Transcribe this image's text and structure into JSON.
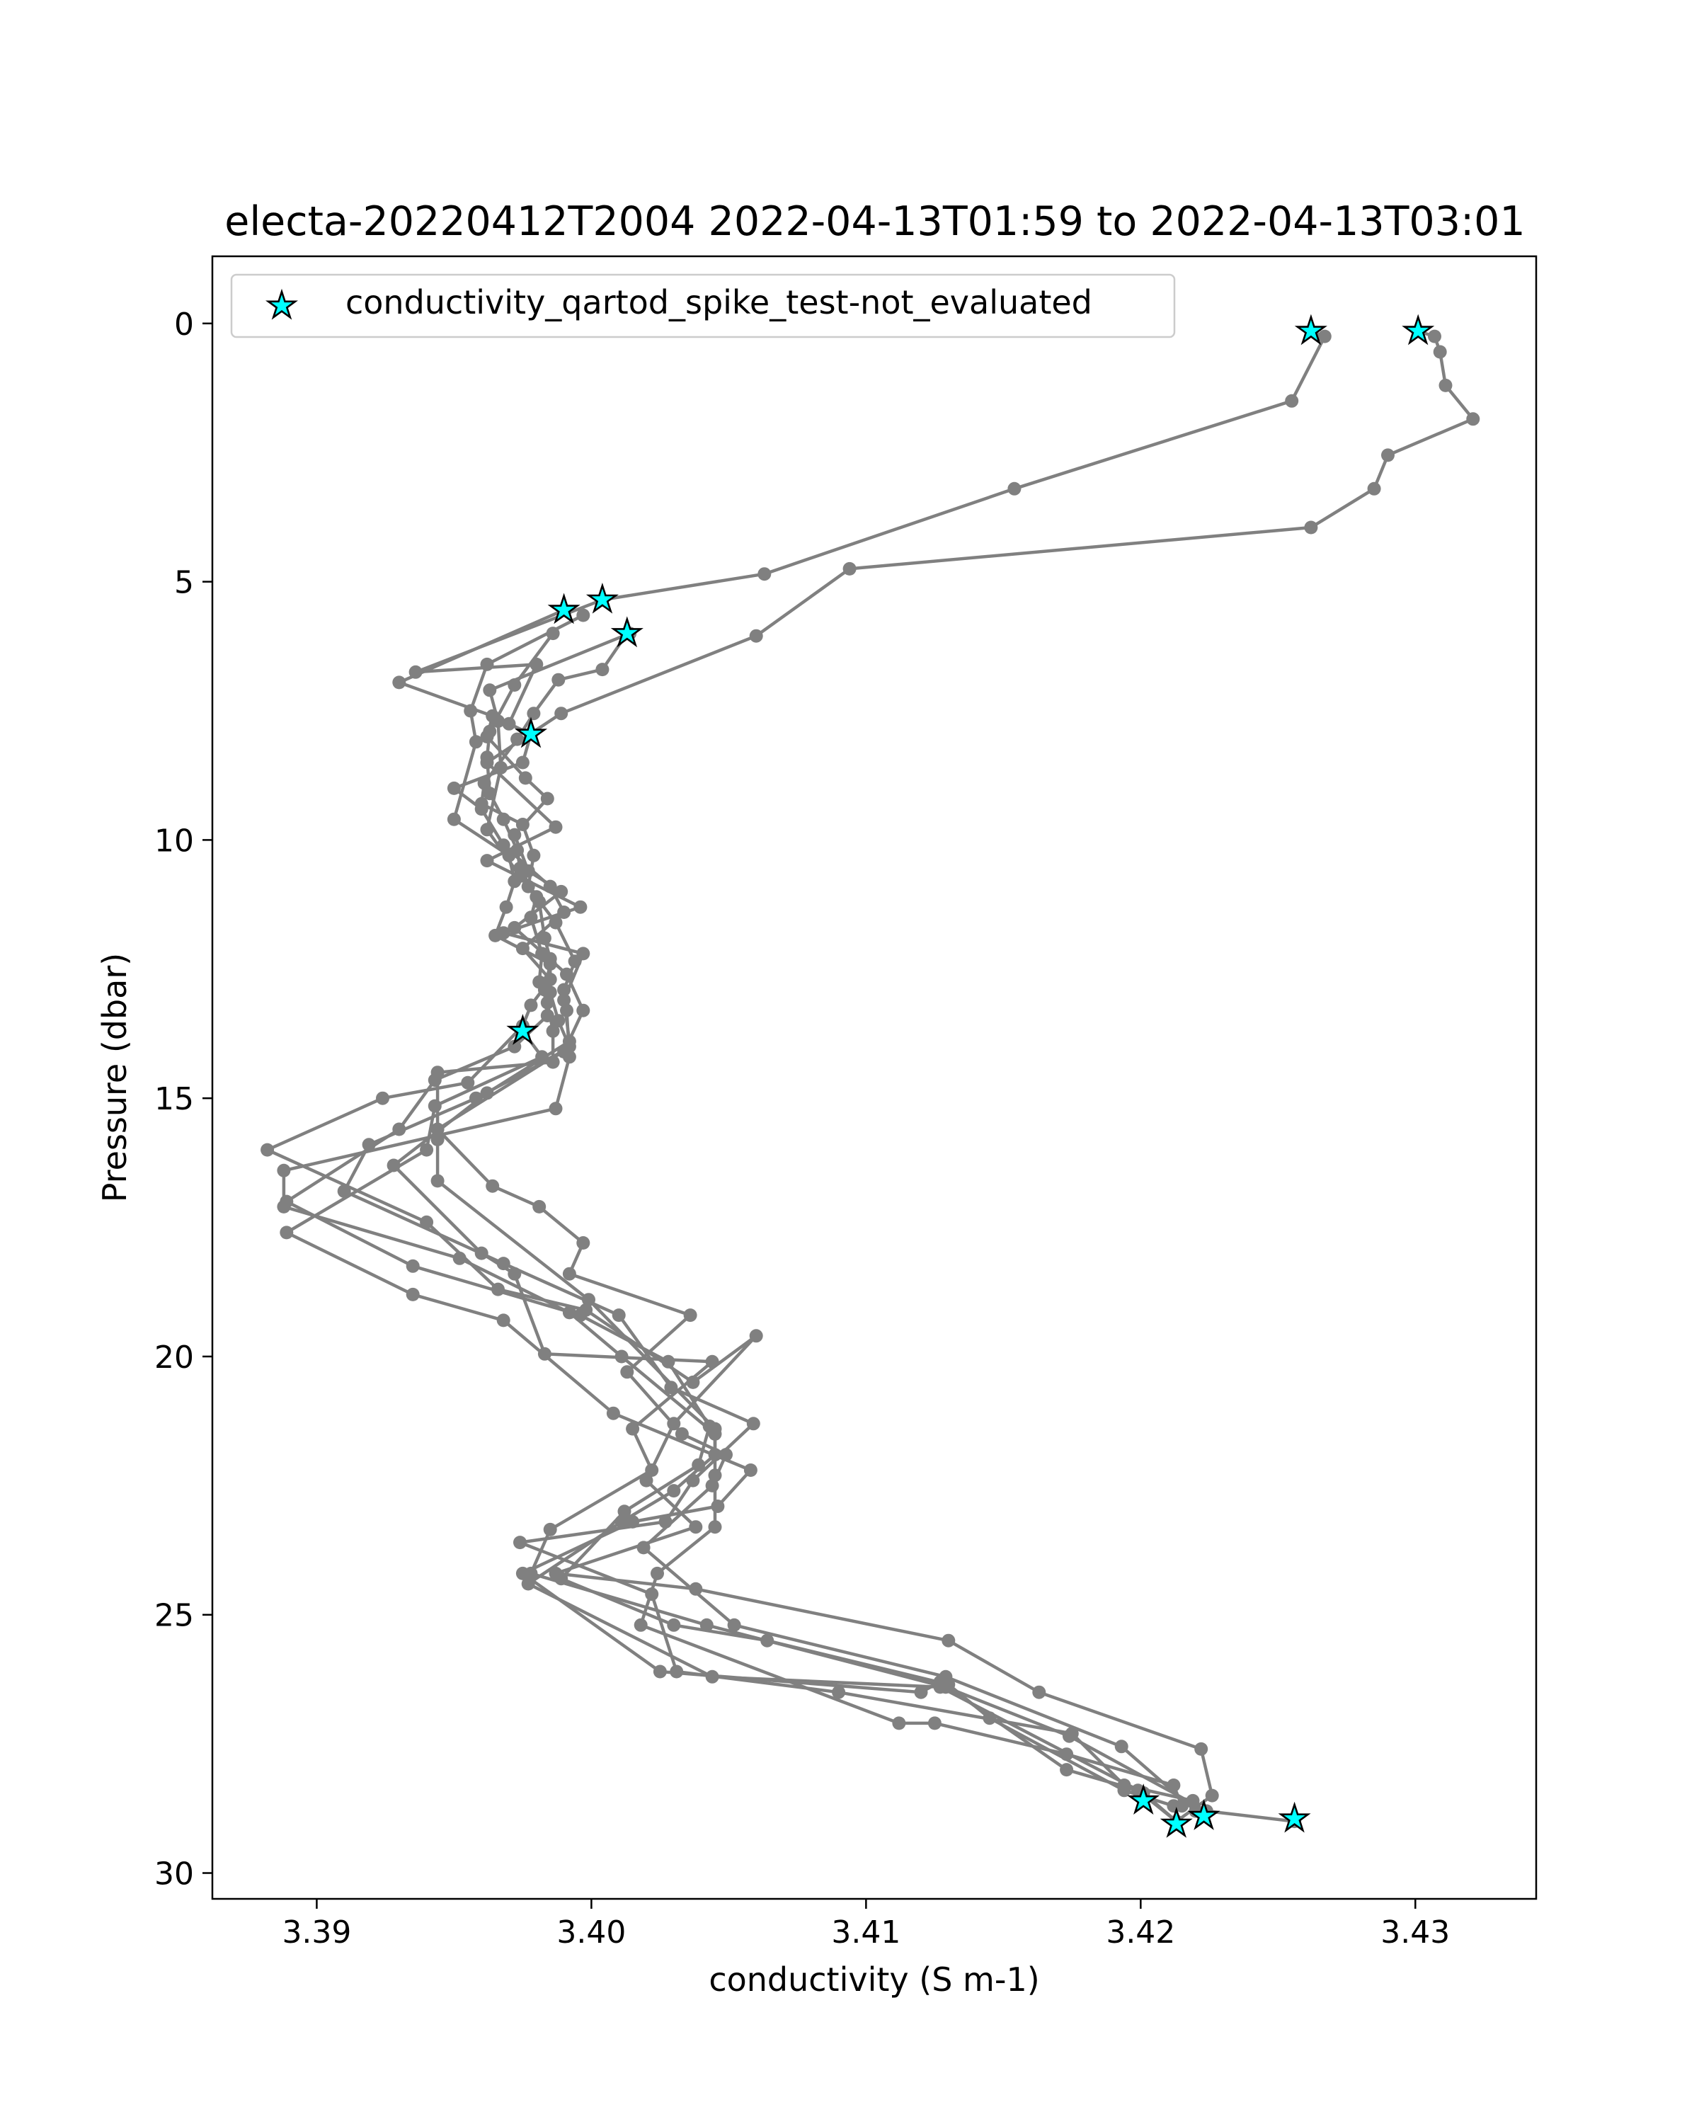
{
  "chart_data": {
    "type": "line",
    "title": "electa-20220412T2004 2022-04-13T01:59 to 2022-04-13T03:01",
    "xlabel": "conductivity (S m-1)",
    "ylabel": "Pressure (dbar)",
    "xlim": [
      3.3862,
      3.4344
    ],
    "ylim": [
      30.5,
      -1.3
    ],
    "y_inverted": true,
    "xticks": [
      "3.39",
      "3.40",
      "3.41",
      "3.42",
      "3.43"
    ],
    "xtick_values": [
      3.39,
      3.4,
      3.41,
      3.42,
      3.43
    ],
    "yticks": [
      "0",
      "5",
      "10",
      "15",
      "20",
      "25",
      "30"
    ],
    "ytick_values": [
      0,
      5,
      10,
      15,
      20,
      25,
      30
    ],
    "grid": false,
    "legend_position": "upper-left",
    "colors": {
      "line": "#808080",
      "marker": "#00ffff",
      "marker_edge": "#000000"
    },
    "series": [
      {
        "kind": "profile",
        "values": [
          [
            3.4262,
            0.15
          ],
          [
            3.4267,
            0.25
          ],
          [
            3.4255,
            1.5
          ],
          [
            3.4154,
            3.2
          ],
          [
            3.4063,
            4.85
          ],
          [
            3.4004,
            5.35
          ],
          [
            3.3936,
            6.75
          ],
          [
            3.398,
            6.6
          ],
          [
            3.397,
            7.75
          ],
          [
            3.3978,
            7.95
          ],
          [
            3.3975,
            8.5
          ],
          [
            3.395,
            9.0
          ],
          [
            3.396,
            9.4
          ],
          [
            3.3968,
            10.1
          ],
          [
            3.3985,
            10.9
          ],
          [
            3.399,
            11.4
          ],
          [
            3.3975,
            12.1
          ],
          [
            3.3985,
            12.7
          ],
          [
            3.3978,
            13.2
          ],
          [
            3.3975,
            13.6
          ],
          [
            3.3955,
            14.7
          ],
          [
            3.3924,
            15.0
          ],
          [
            3.3882,
            16.0
          ],
          [
            3.394,
            17.4
          ],
          [
            3.3966,
            18.7
          ],
          [
            3.3998,
            19.1
          ],
          [
            3.4037,
            20.5
          ],
          [
            3.406,
            19.6
          ],
          [
            3.403,
            21.3
          ],
          [
            3.402,
            22.4
          ],
          [
            3.4038,
            23.3
          ],
          [
            3.3987,
            24.2
          ],
          [
            3.4038,
            24.5
          ],
          [
            3.413,
            25.5
          ],
          [
            3.4163,
            26.5
          ],
          [
            3.4222,
            27.6
          ],
          [
            3.4226,
            28.5
          ],
          [
            3.4213,
            29.0
          ]
        ]
      },
      {
        "kind": "profile",
        "values": [
          [
            3.4301,
            0.15
          ],
          [
            3.4307,
            0.25
          ],
          [
            3.4309,
            0.55
          ],
          [
            3.4311,
            1.2
          ],
          [
            3.4321,
            1.85
          ],
          [
            3.429,
            2.55
          ],
          [
            3.4285,
            3.2
          ],
          [
            3.4262,
            3.95
          ],
          [
            3.4094,
            4.75
          ],
          [
            3.406,
            6.05
          ],
          [
            3.3989,
            7.55
          ],
          [
            3.3962,
            8.5
          ],
          [
            3.3987,
            9.75
          ],
          [
            3.3962,
            10.4
          ],
          [
            3.3996,
            11.3
          ],
          [
            3.3968,
            11.8
          ],
          [
            3.3997,
            12.2
          ],
          [
            3.399,
            13.1
          ],
          [
            3.3992,
            13.9
          ],
          [
            3.3962,
            14.9
          ],
          [
            3.3928,
            16.3
          ],
          [
            3.396,
            18.0
          ],
          [
            3.3972,
            18.4
          ],
          [
            3.3983,
            19.95
          ],
          [
            3.4044,
            20.1
          ],
          [
            3.4015,
            21.4
          ],
          [
            3.4022,
            22.2
          ],
          [
            3.3985,
            23.35
          ],
          [
            3.3978,
            24.2
          ],
          [
            3.4042,
            25.2
          ],
          [
            3.4129,
            26.4
          ],
          [
            3.4174,
            27.35
          ],
          [
            3.4224,
            28.8
          ],
          [
            3.4256,
            29.0
          ]
        ]
      },
      {
        "kind": "profile",
        "values": [
          [
            3.399,
            5.55
          ],
          [
            3.393,
            6.95
          ],
          [
            3.3964,
            7.6
          ],
          [
            3.3962,
            8.0
          ],
          [
            3.3976,
            8.8
          ],
          [
            3.3984,
            9.2
          ],
          [
            3.3972,
            9.9
          ],
          [
            3.3977,
            10.6
          ],
          [
            3.3989,
            11.0
          ],
          [
            3.3972,
            11.7
          ],
          [
            3.3991,
            12.6
          ],
          [
            3.3997,
            13.3
          ],
          [
            3.399,
            14.1
          ],
          [
            3.3958,
            15.0
          ],
          [
            3.3919,
            15.9
          ],
          [
            3.391,
            16.8
          ],
          [
            3.3968,
            18.2
          ],
          [
            3.401,
            19.2
          ],
          [
            3.4029,
            20.6
          ],
          [
            3.4059,
            21.3
          ],
          [
            3.4037,
            22.4
          ],
          [
            3.4027,
            23.2
          ],
          [
            3.3974,
            23.6
          ],
          [
            3.4022,
            24.6
          ],
          [
            3.4031,
            26.1
          ],
          [
            3.409,
            26.5
          ],
          [
            3.4175,
            27.3
          ],
          [
            3.4194,
            28.3
          ],
          [
            3.4219,
            28.6
          ]
        ]
      },
      {
        "kind": "profile",
        "values": [
          [
            3.4013,
            6.0
          ],
          [
            3.4004,
            6.7
          ],
          [
            3.3988,
            6.9
          ],
          [
            3.3979,
            7.55
          ],
          [
            3.3973,
            8.05
          ],
          [
            3.3961,
            8.9
          ],
          [
            3.396,
            9.3
          ],
          [
            3.3975,
            9.7
          ],
          [
            3.3979,
            10.3
          ],
          [
            3.3977,
            10.9
          ],
          [
            3.3987,
            11.6
          ],
          [
            3.3994,
            12.35
          ],
          [
            3.399,
            12.9
          ],
          [
            3.3991,
            13.3
          ],
          [
            3.3992,
            14.2
          ],
          [
            3.3987,
            15.2
          ],
          [
            3.3888,
            16.4
          ],
          [
            3.3888,
            17.1
          ],
          [
            3.3952,
            18.1
          ],
          [
            3.3992,
            19.15
          ],
          [
            3.4011,
            20.0
          ],
          [
            3.4045,
            21.5
          ],
          [
            3.4045,
            22.3
          ],
          [
            3.4045,
            23.3
          ],
          [
            3.4024,
            24.2
          ],
          [
            3.4018,
            25.2
          ],
          [
            3.4112,
            27.1
          ],
          [
            3.4125,
            27.1
          ],
          [
            3.4173,
            27.7
          ],
          [
            3.4212,
            28.3
          ],
          [
            3.4215,
            28.7
          ]
        ]
      },
      {
        "kind": "profile",
        "values": [
          [
            3.3997,
            5.65
          ],
          [
            3.3962,
            6.6
          ],
          [
            3.3956,
            7.5
          ],
          [
            3.3958,
            8.1
          ],
          [
            3.395,
            9.6
          ],
          [
            3.397,
            10.3
          ],
          [
            3.3972,
            10.8
          ],
          [
            3.3969,
            11.3
          ],
          [
            3.3965,
            11.85
          ],
          [
            3.3985,
            12.4
          ],
          [
            3.3983,
            12.9
          ],
          [
            3.3984,
            13.4
          ],
          [
            3.3972,
            14.0
          ],
          [
            3.3943,
            14.65
          ],
          [
            3.393,
            15.6
          ],
          [
            3.3889,
            17.0
          ],
          [
            3.3935,
            18.25
          ],
          [
            3.3996,
            19.2
          ],
          [
            3.4028,
            20.1
          ],
          [
            3.4043,
            21.35
          ],
          [
            3.4039,
            22.1
          ],
          [
            3.4012,
            23.0
          ],
          [
            3.3989,
            24.3
          ],
          [
            3.403,
            25.2
          ],
          [
            3.4064,
            25.5
          ],
          [
            3.413,
            26.35
          ],
          [
            3.4145,
            27.0
          ],
          [
            3.4194,
            28.4
          ],
          [
            3.4212,
            28.7
          ]
        ]
      },
      {
        "kind": "profile",
        "values": [
          [
            3.3975,
            13.7
          ],
          [
            3.3982,
            14.2
          ],
          [
            3.3943,
            15.15
          ],
          [
            3.394,
            16.0
          ],
          [
            3.3889,
            17.6
          ],
          [
            3.3935,
            18.8
          ],
          [
            3.3968,
            19.3
          ],
          [
            3.4008,
            21.1
          ],
          [
            3.4058,
            22.2
          ],
          [
            3.4046,
            22.9
          ],
          [
            3.4015,
            23.2
          ],
          [
            3.3975,
            24.2
          ],
          [
            3.4025,
            26.1
          ],
          [
            3.412,
            26.5
          ],
          [
            3.4127,
            26.3
          ],
          [
            3.4173,
            28.0
          ],
          [
            3.4199,
            28.4
          ],
          [
            3.4213,
            29.0
          ]
        ]
      },
      {
        "kind": "profile",
        "values": [
          [
            3.4014,
            6.0
          ],
          [
            3.3963,
            7.1
          ],
          [
            3.3966,
            7.7
          ],
          [
            3.3967,
            8.6
          ],
          [
            3.3962,
            9.8
          ],
          [
            3.3974,
            10.7
          ],
          [
            3.3981,
            11.2
          ],
          [
            3.3983,
            11.9
          ],
          [
            3.3985,
            12.3
          ],
          [
            3.3985,
            12.95
          ],
          [
            3.3988,
            13.5
          ],
          [
            3.3992,
            14.0
          ],
          [
            3.3944,
            15.6
          ],
          [
            3.3964,
            16.7
          ],
          [
            3.3981,
            17.1
          ],
          [
            3.3997,
            17.8
          ],
          [
            3.3992,
            18.4
          ],
          [
            3.4036,
            19.2
          ],
          [
            3.4013,
            20.3
          ],
          [
            3.4033,
            21.5
          ],
          [
            3.4049,
            21.9
          ],
          [
            3.4044,
            22.5
          ],
          [
            3.4019,
            23.7
          ],
          [
            3.4052,
            25.2
          ],
          [
            3.4129,
            26.2
          ],
          [
            3.4193,
            27.55
          ],
          [
            3.422,
            28.8
          ]
        ]
      },
      {
        "kind": "profile",
        "values": [
          [
            3.3986,
            6.0
          ],
          [
            3.3972,
            7.0
          ],
          [
            3.3963,
            7.9
          ],
          [
            3.3962,
            8.4
          ],
          [
            3.3963,
            9.1
          ],
          [
            3.3968,
            9.6
          ],
          [
            3.3973,
            10.2
          ],
          [
            3.3974,
            10.55
          ],
          [
            3.398,
            11.1
          ],
          [
            3.3978,
            11.5
          ],
          [
            3.3982,
            12.2
          ],
          [
            3.3981,
            12.75
          ],
          [
            3.3984,
            13.15
          ],
          [
            3.3986,
            13.7
          ],
          [
            3.3986,
            14.3
          ],
          [
            3.3944,
            14.5
          ],
          [
            3.3944,
            15.8
          ],
          [
            3.3944,
            16.6
          ],
          [
            3.3999,
            18.9
          ],
          [
            3.4045,
            21.4
          ],
          [
            3.4045,
            21.9
          ],
          [
            3.403,
            22.6
          ],
          [
            3.4011,
            23.2
          ],
          [
            3.3977,
            24.4
          ],
          [
            3.4044,
            26.2
          ],
          [
            3.4127,
            26.4
          ],
          [
            3.4201,
            28.45
          ],
          [
            3.4213,
            29.0
          ]
        ]
      }
    ],
    "flagged_points": {
      "name": "conductivity_qartod_spike_test-not_evaluated",
      "values": [
        [
          3.4262,
          0.15
        ],
        [
          3.4301,
          0.15
        ],
        [
          3.4004,
          5.35
        ],
        [
          3.399,
          5.55
        ],
        [
          3.4013,
          6.0
        ],
        [
          3.3978,
          7.95
        ],
        [
          3.3975,
          13.7
        ],
        [
          3.4201,
          28.6
        ],
        [
          3.4213,
          29.05
        ],
        [
          3.4223,
          28.9
        ],
        [
          3.4256,
          28.95
        ]
      ]
    }
  }
}
